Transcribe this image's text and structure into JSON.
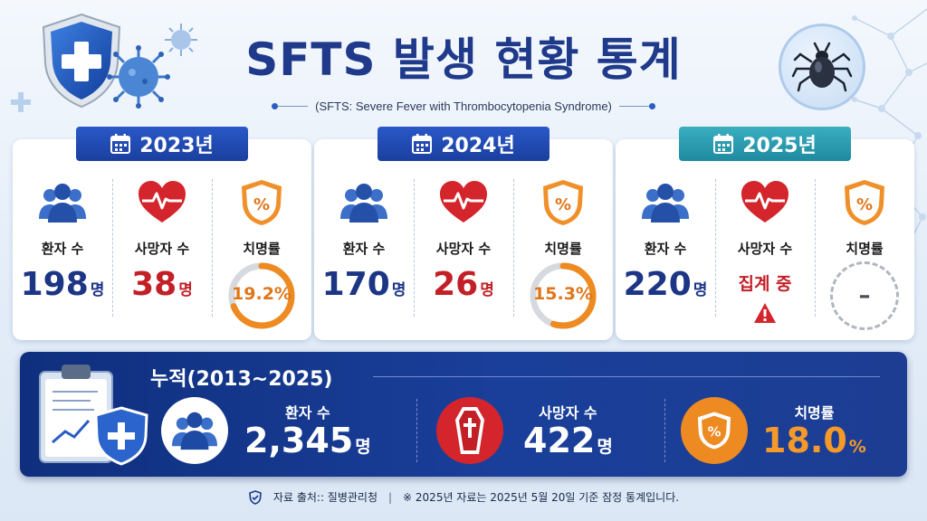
{
  "header": {
    "title": "SFTS 발생 현황 통계",
    "subtitle": "(SFTS: Severe Fever with Thrombocytopenia Syndrome)"
  },
  "icons": {
    "header_left": "medical-shield-icon",
    "virus": "virus-icon",
    "tick": "tick-insect-icon",
    "calendar": "calendar-icon",
    "patients": "people-group-icon",
    "deaths": "heart-pulse-icon",
    "rate": "percent-shield-icon",
    "warning": "warning-icon",
    "coffin": "coffin-cross-icon",
    "clipboard": "clipboard-chart-icon"
  },
  "colors": {
    "navy": "#1c3585",
    "red": "#c21f26",
    "orange": "#e0761a",
    "tab_blue": "#1f48b0",
    "tab_teal": "#2a9cb0"
  },
  "years": [
    {
      "year": "2023년",
      "patients_label": "환자 수",
      "patients": "198",
      "patients_unit": "명",
      "deaths_label": "사망자 수",
      "deaths": "38",
      "deaths_unit": "명",
      "rate_label": "치명률",
      "rate": "19.2%",
      "rate_value": 19.2
    },
    {
      "year": "2024년",
      "patients_label": "환자 수",
      "patients": "170",
      "patients_unit": "명",
      "deaths_label": "사망자 수",
      "deaths": "26",
      "deaths_unit": "명",
      "rate_label": "치명률",
      "rate": "15.3%",
      "rate_value": 15.3
    },
    {
      "year": "2025년",
      "patients_label": "환자 수",
      "patients": "220",
      "patients_unit": "명",
      "deaths_label": "사망자 수",
      "deaths_pending": "집계 중",
      "rate_label": "치명률",
      "rate": "–"
    }
  ],
  "total": {
    "title": "누적(2013~2025)",
    "patients_label": "환자 수",
    "patients": "2,345",
    "patients_unit": "명",
    "deaths_label": "사망자 수",
    "deaths": "422",
    "deaths_unit": "명",
    "rate_label": "치명률",
    "rate": "18.0",
    "rate_unit": "%"
  },
  "footer": {
    "source": "자료 출처:: 질병관리청",
    "separator": "|",
    "note": "※ 2025년 자료는 2025년 5월 20일 기준 잠정 통계입니다."
  }
}
